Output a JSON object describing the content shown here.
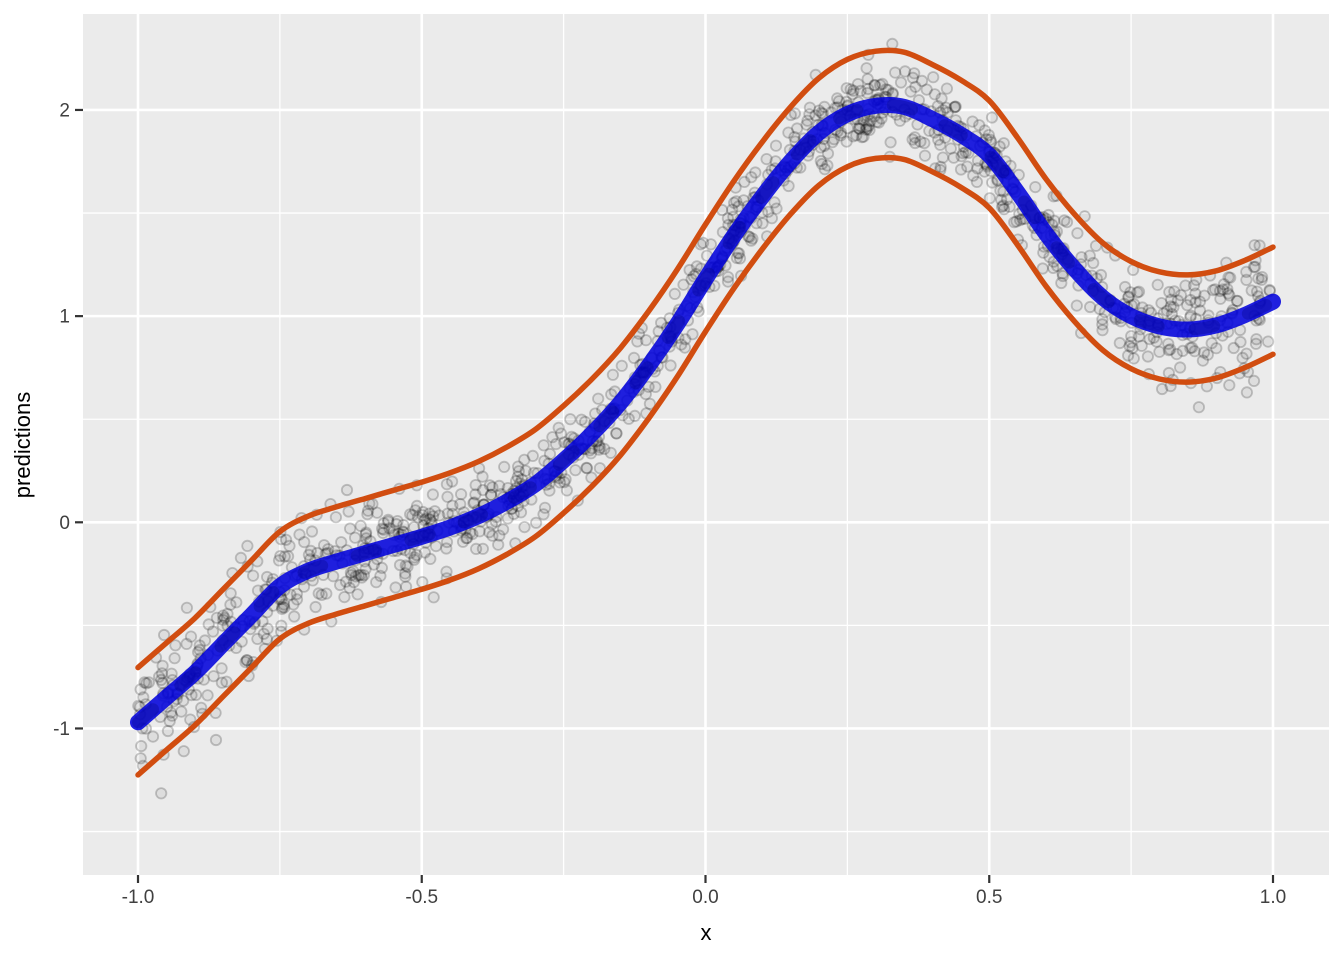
{
  "chart_data": {
    "type": "scatter",
    "title": "",
    "xlabel": "x",
    "ylabel": "predictions",
    "grid": true,
    "legend": "none",
    "panel_bg": "#EBEBEB",
    "grid_color": "#FFFFFF",
    "tick_color": "#333333",
    "tick_label_color": "#404040",
    "xlim": [
      -1.097,
      1.099
    ],
    "ylim": [
      -1.711,
      2.466
    ],
    "x_ticks": [
      -1.0,
      -0.5,
      0.0,
      0.5,
      1.0
    ],
    "x_tick_labels": [
      "-1.0",
      "-0.5",
      "0.0",
      "0.5",
      "1.0"
    ],
    "x_minor_ticks": [
      -0.75,
      -0.25,
      0.25,
      0.75
    ],
    "y_ticks": [
      -1,
      0,
      1,
      2
    ],
    "y_tick_labels": [
      "-1",
      "0",
      "1",
      "2"
    ],
    "y_minor_ticks": [
      -1.5,
      -0.5,
      0.5,
      1.5
    ],
    "mean_curve": {
      "name": "prediction-mean-line",
      "color": "#0202DC",
      "core_color": "#000078",
      "width": 16,
      "points": [
        [
          -1.0,
          -0.97
        ],
        [
          -0.95,
          -0.85
        ],
        [
          -0.9,
          -0.73
        ],
        [
          -0.85,
          -0.59
        ],
        [
          -0.8,
          -0.45
        ],
        [
          -0.75,
          -0.31
        ],
        [
          -0.7,
          -0.235
        ],
        [
          -0.65,
          -0.19
        ],
        [
          -0.6,
          -0.15
        ],
        [
          -0.55,
          -0.11
        ],
        [
          -0.5,
          -0.07
        ],
        [
          -0.45,
          -0.025
        ],
        [
          -0.4,
          0.03
        ],
        [
          -0.35,
          0.1
        ],
        [
          -0.3,
          0.185
        ],
        [
          -0.25,
          0.3
        ],
        [
          -0.2,
          0.43
        ],
        [
          -0.15,
          0.58
        ],
        [
          -0.1,
          0.76
        ],
        [
          -0.05,
          0.96
        ],
        [
          0.0,
          1.18
        ],
        [
          0.05,
          1.39
        ],
        [
          0.1,
          1.58
        ],
        [
          0.15,
          1.75
        ],
        [
          0.2,
          1.89
        ],
        [
          0.25,
          1.98
        ],
        [
          0.3,
          2.02
        ],
        [
          0.35,
          2.015
        ],
        [
          0.4,
          1.955
        ],
        [
          0.45,
          1.88
        ],
        [
          0.5,
          1.78
        ],
        [
          0.55,
          1.6
        ],
        [
          0.6,
          1.4
        ],
        [
          0.65,
          1.23
        ],
        [
          0.7,
          1.09
        ],
        [
          0.75,
          1.0
        ],
        [
          0.8,
          0.95
        ],
        [
          0.85,
          0.935
        ],
        [
          0.9,
          0.955
        ],
        [
          0.95,
          1.005
        ],
        [
          1.0,
          1.07
        ]
      ]
    },
    "confidence_band": {
      "name": "confidence-band-lines",
      "color": "#D14D10",
      "width": 5.5,
      "offset_upper": 0.265,
      "offset_lower": 0.255
    },
    "scatter": {
      "name": "observations",
      "n": 1150,
      "x_range": [
        -1,
        1
      ],
      "noise_sd_center": 0.1,
      "noise_sd_edge": 0.17,
      "edge_start": 0.55,
      "seed": 20,
      "point_radius": 5.2,
      "fill": "rgba(0,0,0,0.06)",
      "stroke": "rgba(0,0,0,0.20)",
      "stroke_width": 1.8
    }
  }
}
